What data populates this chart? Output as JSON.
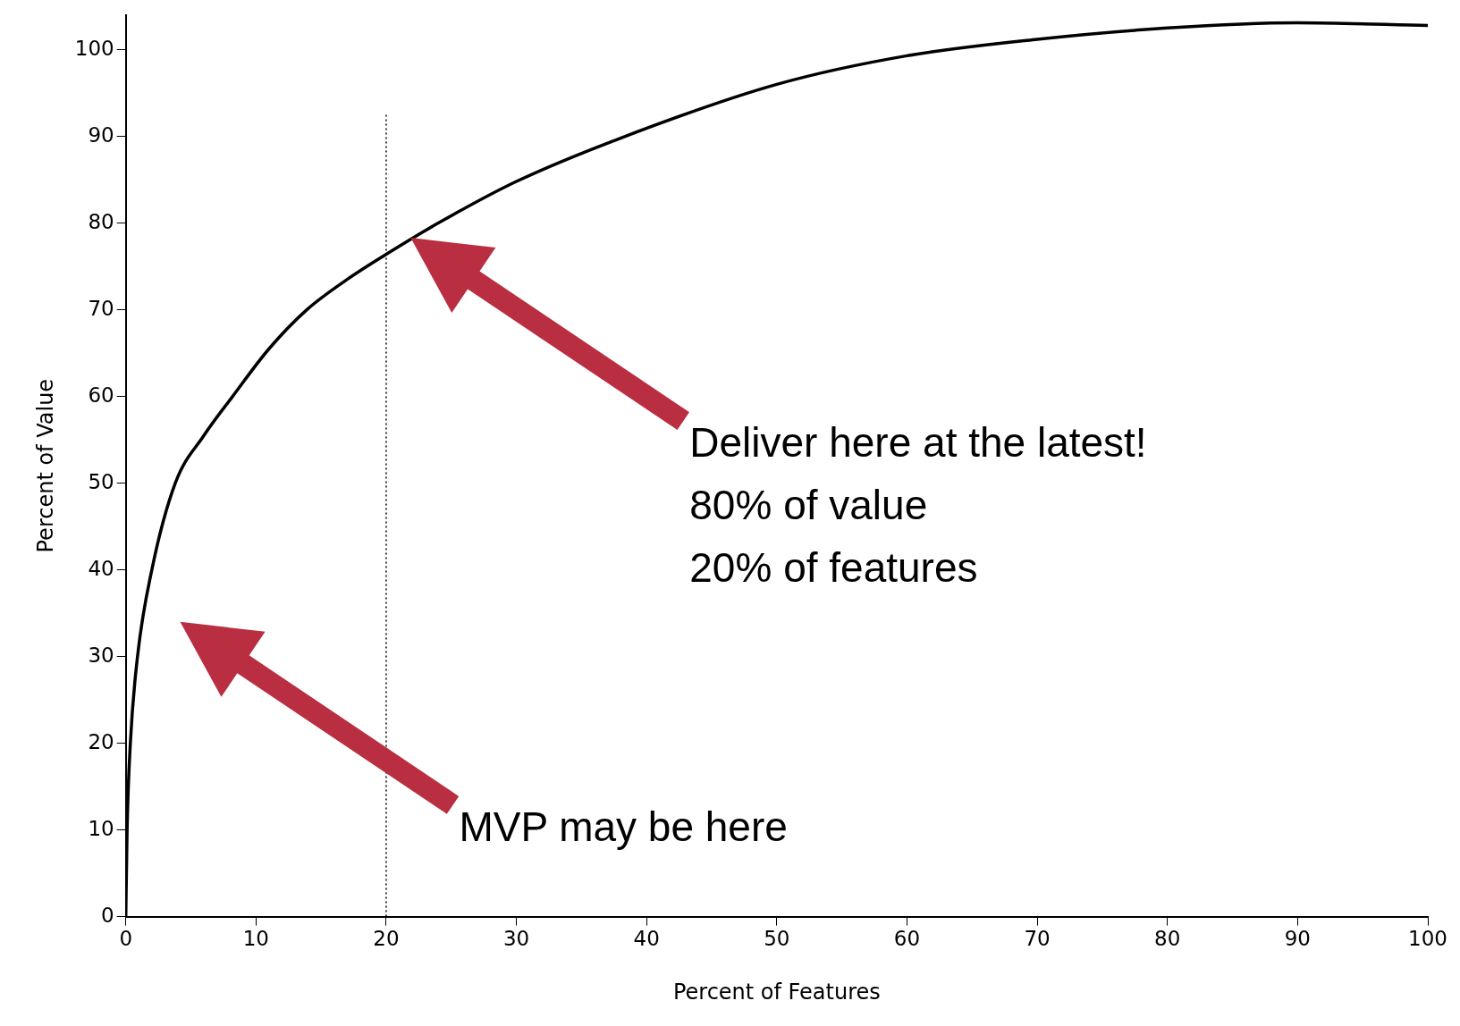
{
  "chart_data": {
    "type": "line",
    "xlabel": "Percent of Features",
    "ylabel": "Percent of Value",
    "x": [
      0,
      0.1,
      0.35,
      0.9,
      2,
      3.8,
      6,
      8.2,
      11,
      13.9,
      17,
      20,
      24,
      30,
      38,
      50,
      60,
      70,
      80,
      90,
      100
    ],
    "series": [
      {
        "color": "#000000",
        "values": [
          0,
          10,
          20,
          30,
          40,
          50,
          55.5,
          60,
          65.5,
          70,
          73.5,
          76.4,
          80,
          84.8,
          89.8,
          96,
          99.3,
          101.2,
          102.5,
          103.1,
          102.8
        ]
      }
    ],
    "xlim": [
      0,
      100
    ],
    "xticks": [
      0,
      10,
      20,
      30,
      40,
      50,
      60,
      70,
      80,
      90,
      100
    ],
    "ylim": [
      0,
      104
    ],
    "yticks": [
      0,
      10,
      20,
      30,
      40,
      50,
      60,
      70,
      80,
      90,
      100
    ],
    "grid": false,
    "legend": false,
    "marker": "none",
    "line_style": "solid",
    "ref_lines": [
      {
        "axis": "x",
        "value": 20,
        "color": "#000000",
        "line_style": "dotted"
      }
    ],
    "annotations": [
      "Deliver here at the latest!\n80% of value\n20% of features",
      "MVP may be here"
    ]
  }
}
